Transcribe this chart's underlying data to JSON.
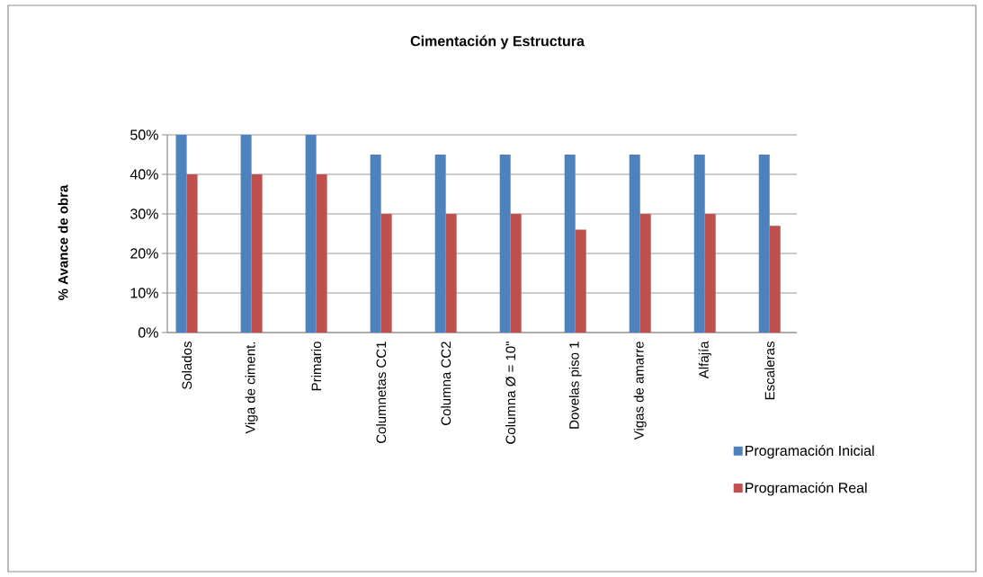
{
  "chart_data": {
    "type": "bar",
    "title": "Cimentación y Estructura",
    "ylabel": "% Avance de obra",
    "categories": [
      "Solados",
      "Viga de ciment.",
      "Primario",
      "Columnetas CC1",
      "Columna CC2",
      "Columna Ø = 10\"",
      "Dovelas piso 1",
      "Vigas de amarre",
      "Alfajía",
      "Escaleras"
    ],
    "series": [
      {
        "name": "Programación Inicial",
        "color": "#4f81bd",
        "values": [
          50,
          50,
          50,
          45,
          45,
          45,
          45,
          45,
          45,
          45
        ]
      },
      {
        "name": "Programación Real",
        "color": "#c0504d",
        "values": [
          40,
          40,
          40,
          30,
          30,
          30,
          26,
          30,
          30,
          27
        ]
      }
    ],
    "ylim": [
      0,
      50
    ],
    "yticks": [
      {
        "value": 0,
        "label": "0%"
      },
      {
        "value": 10,
        "label": "10%"
      },
      {
        "value": 20,
        "label": "20%"
      },
      {
        "value": 30,
        "label": "30%"
      },
      {
        "value": 40,
        "label": "40%"
      },
      {
        "value": 50,
        "label": "50%"
      }
    ],
    "grid": "y",
    "legend": "bottom right"
  }
}
